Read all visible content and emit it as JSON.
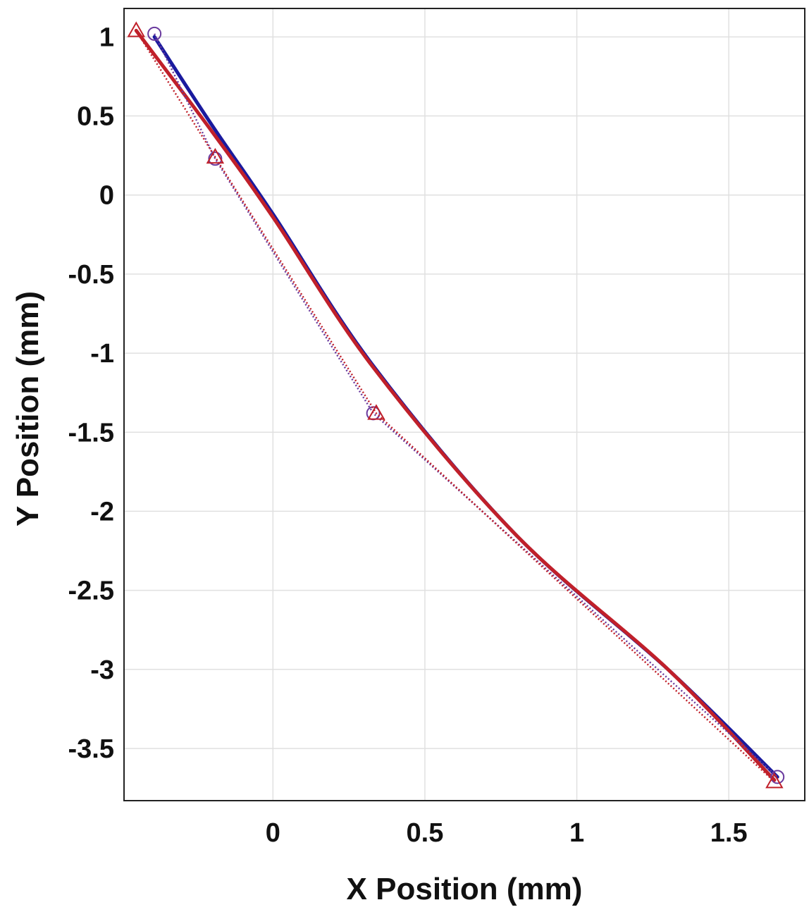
{
  "chart_data": {
    "type": "line",
    "title": "",
    "xlabel": "X Position (mm)",
    "ylabel": "Y Position (mm)",
    "xlim": [
      -0.49,
      1.75
    ],
    "ylim": [
      -3.83,
      1.18
    ],
    "xticks": [
      0,
      0.5,
      1,
      1.5
    ],
    "xtick_labels": [
      "0",
      "0.5",
      "1",
      "1.5"
    ],
    "yticks": [
      1,
      0.5,
      0,
      -0.5,
      -1,
      -1.5,
      -2,
      -2.5,
      -3,
      -3.5
    ],
    "ytick_labels": [
      "1",
      "0.5",
      "0",
      "-0.5",
      "-1",
      "-1.5",
      "-2",
      "-2.5",
      "-3",
      "-3.5"
    ],
    "grid": true,
    "series": [
      {
        "color": "#1a1a9e",
        "style": "solid",
        "x": [
          -0.39,
          -0.2,
          0.0,
          0.33,
          0.8,
          1.3,
          1.66
        ],
        "y": [
          1.0,
          0.44,
          -0.12,
          -1.08,
          -2.15,
          -3.0,
          -3.68
        ]
      },
      {
        "color": "#c0202a",
        "style": "solid",
        "x": [
          -0.45,
          -0.2,
          0.0,
          0.33,
          0.8,
          1.3,
          1.65
        ],
        "y": [
          1.04,
          0.4,
          -0.14,
          -1.09,
          -2.15,
          -3.0,
          -3.7
        ]
      },
      {
        "color": "#6a3a9e",
        "style": "dotted",
        "marker": "circle",
        "x": [
          -0.39,
          -0.19,
          0.33,
          1.66
        ],
        "y": [
          1.02,
          0.23,
          -1.38,
          -3.68
        ]
      },
      {
        "color": "#c0202a",
        "style": "dotted",
        "marker": "triangle",
        "x": [
          -0.45,
          -0.19,
          0.34,
          1.65
        ],
        "y": [
          1.04,
          0.24,
          -1.38,
          -3.71
        ]
      }
    ]
  }
}
